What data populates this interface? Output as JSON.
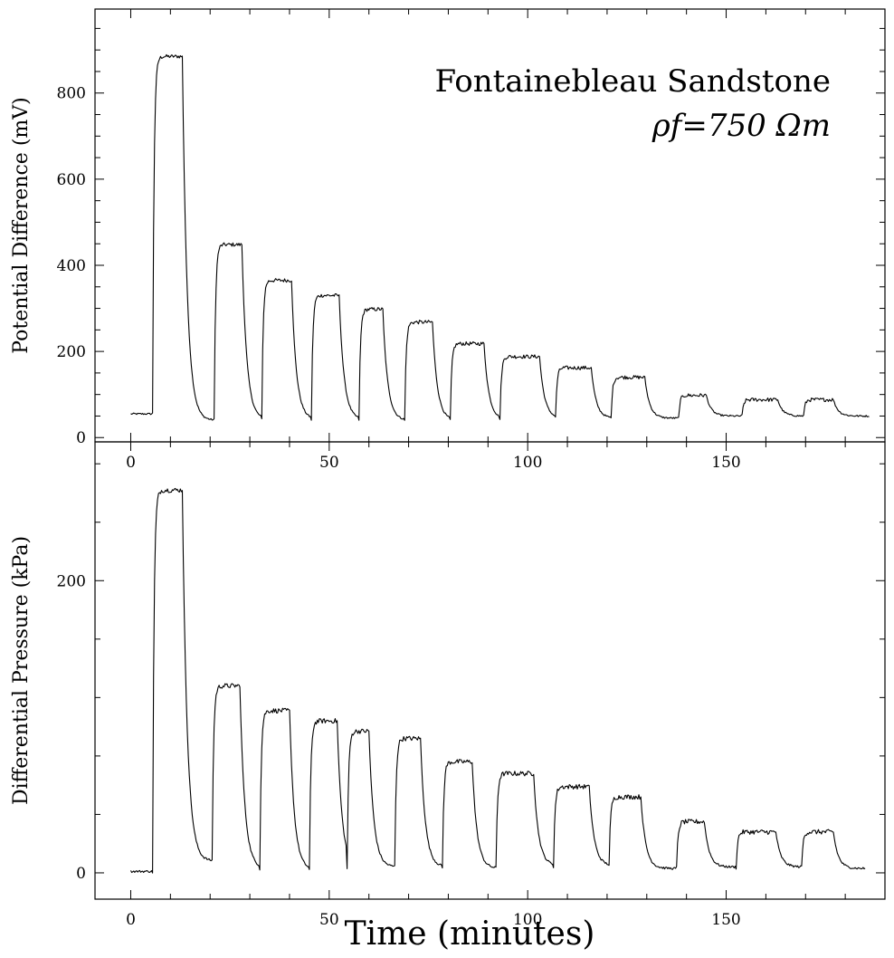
{
  "chart_data": [
    {
      "type": "line",
      "title": "Fontainebleau Sandstone",
      "subtitle": "ρf=750 Ωm",
      "xlabel": "",
      "ylabel": "Potential Difference (mV)",
      "xlim": [
        -9,
        190
      ],
      "ylim": [
        -10,
        995
      ],
      "xticks": [
        0,
        50,
        100,
        150
      ],
      "yticks": [
        0,
        200,
        400,
        600,
        800
      ],
      "baseline": 55,
      "noise": 4,
      "pulses": [
        {
          "start": 5.5,
          "end": 13.0,
          "level": 885,
          "base_after": 40
        },
        {
          "start": 21.0,
          "end": 28.0,
          "level": 448,
          "base_after": 42
        },
        {
          "start": 33.0,
          "end": 40.5,
          "level": 365,
          "base_after": 42
        },
        {
          "start": 45.5,
          "end": 52.5,
          "level": 330,
          "base_after": 42
        },
        {
          "start": 57.5,
          "end": 63.5,
          "level": 298,
          "base_after": 40
        },
        {
          "start": 69.0,
          "end": 76.0,
          "level": 268,
          "base_after": 40
        },
        {
          "start": 80.5,
          "end": 89.0,
          "level": 218,
          "base_after": 42
        },
        {
          "start": 93.0,
          "end": 103.0,
          "level": 188,
          "base_after": 45
        },
        {
          "start": 107.0,
          "end": 116.0,
          "level": 162,
          "base_after": 45
        },
        {
          "start": 121.0,
          "end": 129.5,
          "level": 140,
          "base_after": 45
        },
        {
          "start": 138.0,
          "end": 145.0,
          "level": 98,
          "base_after": 50
        },
        {
          "start": 154.0,
          "end": 163.0,
          "level": 88,
          "base_after": 50
        },
        {
          "start": 169.5,
          "end": 177.0,
          "level": 88,
          "base_after": 50
        }
      ],
      "end_x": 186
    },
    {
      "type": "line",
      "title": "",
      "xlabel": "Time (minutes)",
      "ylabel": "Differential Pressure (kPa)",
      "xlim": [
        -9,
        190
      ],
      "ylim": [
        -18,
        295
      ],
      "xticks": [
        0,
        50,
        100,
        150
      ],
      "yticks": [
        0,
        200
      ],
      "baseline": 1,
      "noise": 1.5,
      "pulses": [
        {
          "start": 5.5,
          "end": 13.0,
          "level": 262,
          "base_after": 8
        },
        {
          "start": 20.5,
          "end": 27.5,
          "level": 128,
          "base_after": 3
        },
        {
          "start": 32.5,
          "end": 40.0,
          "level": 111,
          "base_after": 2
        },
        {
          "start": 45.0,
          "end": 52.0,
          "level": 104,
          "base_after": 3
        },
        {
          "start": 54.5,
          "end": 60.0,
          "level": 97,
          "base_after": 4
        },
        {
          "start": 66.5,
          "end": 73.0,
          "level": 92,
          "base_after": 4
        },
        {
          "start": 78.5,
          "end": 86.0,
          "level": 76,
          "base_after": 3
        },
        {
          "start": 92.0,
          "end": 101.5,
          "level": 68,
          "base_after": 5
        },
        {
          "start": 106.5,
          "end": 115.5,
          "level": 59,
          "base_after": 5
        },
        {
          "start": 120.5,
          "end": 128.5,
          "level": 52,
          "base_after": 3
        },
        {
          "start": 137.5,
          "end": 144.5,
          "level": 35,
          "base_after": 4
        },
        {
          "start": 152.5,
          "end": 162.5,
          "level": 28,
          "base_after": 4
        },
        {
          "start": 169.0,
          "end": 177.0,
          "level": 28,
          "base_after": 3
        }
      ],
      "end_x": 185
    }
  ]
}
